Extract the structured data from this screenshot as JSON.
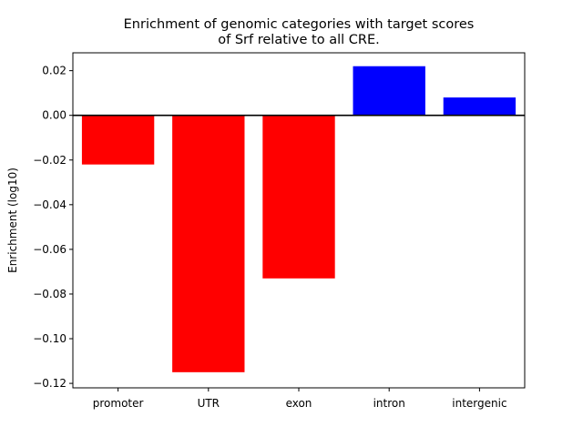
{
  "chart_data": {
    "type": "bar",
    "title_lines": [
      "Enrichment of genomic categories with target scores",
      "of Srf relative to all CRE."
    ],
    "xlabel": "",
    "ylabel": "Enrichment (log10)",
    "categories": [
      "promoter",
      "UTR",
      "exon",
      "intron",
      "intergenic"
    ],
    "values": [
      -0.022,
      -0.115,
      -0.073,
      0.022,
      0.008
    ],
    "ylim": [
      -0.122,
      0.028
    ],
    "yticks": [
      0.02,
      0.0,
      -0.02,
      -0.04,
      -0.06,
      -0.08,
      -0.1,
      -0.12
    ],
    "ytick_labels": [
      "0.02",
      "0.00",
      "−0.02",
      "−0.04",
      "−0.06",
      "−0.08",
      "−0.10",
      "−0.12"
    ],
    "colors": {
      "positive": "#0000ff",
      "negative": "#ff0000",
      "zero_line": "#000000",
      "axes": "#000000"
    },
    "zero_line": true,
    "grid": false,
    "legend": "none"
  }
}
